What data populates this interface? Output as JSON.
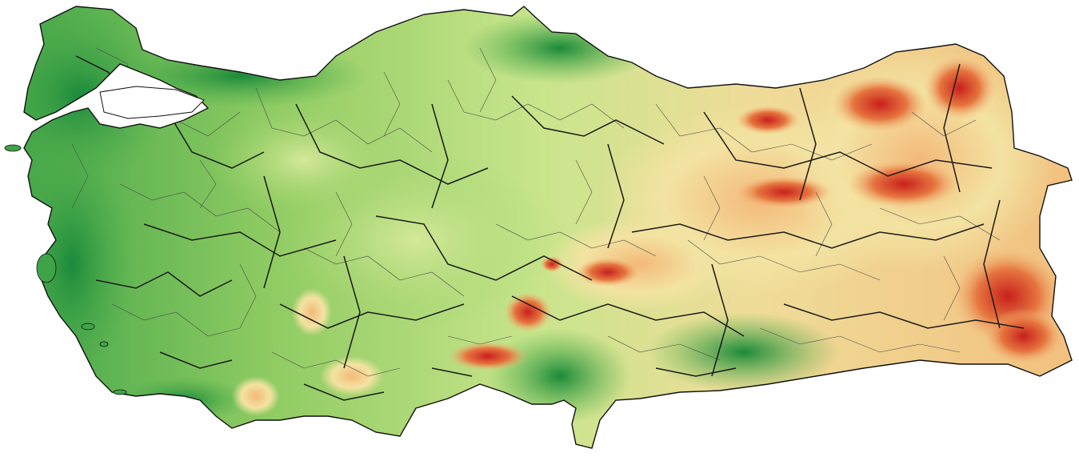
{
  "map": {
    "subject": "Turkey",
    "kind": "elevation relief map with province and district boundaries",
    "palette": {
      "sea": "#ffffff",
      "lowland_dark": "#1a8a3a",
      "lowland": "#4fae4a",
      "plain": "#9ed36a",
      "plateau": "#d6e99a",
      "upland": "#f3e3a2",
      "highland": "#f3b97a",
      "mountain": "#e6753f",
      "peak": "#c8201c",
      "province_border": "#1a1a1a",
      "district_border": "#4a4a4a"
    },
    "legend": "none",
    "labels": "none"
  }
}
